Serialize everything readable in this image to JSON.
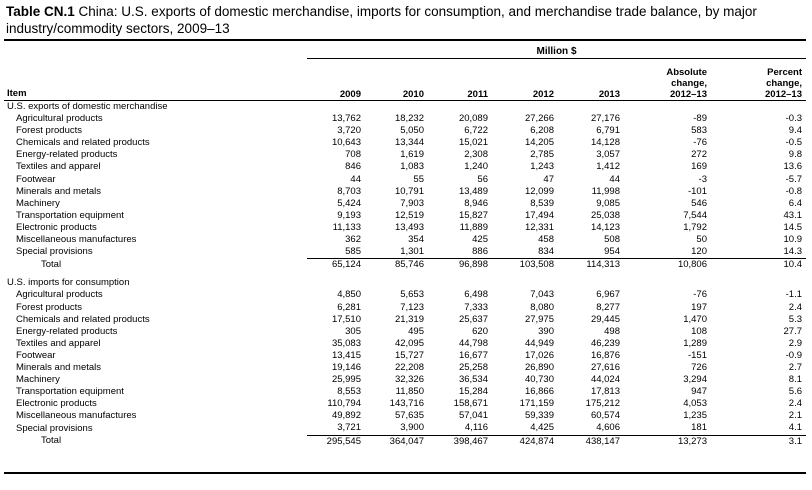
{
  "caption": {
    "label": "Table CN.1",
    "text": "China: U.S. exports of domestic merchandise, imports for consumption, and merchandise trade balance, by major industry/commodity sectors, 2009–13"
  },
  "unit_header": "Million $",
  "columns": {
    "item": "Item",
    "y2009": "2009",
    "y2010": "2010",
    "y2011": "2011",
    "y2012": "2012",
    "y2013": "2013",
    "abs": [
      "Absolute",
      "change,",
      "2012–13"
    ],
    "pct": [
      "Percent",
      "change,",
      "2012–13"
    ]
  },
  "exports": {
    "title": "U.S. exports of domestic merchandise",
    "rows": [
      [
        "Agricultural products",
        "13,762",
        "18,232",
        "20,089",
        "27,266",
        "27,176",
        "-89",
        "-0.3"
      ],
      [
        "Forest products",
        "3,720",
        "5,050",
        "6,722",
        "6,208",
        "6,791",
        "583",
        "9.4"
      ],
      [
        "Chemicals and related products",
        "10,643",
        "13,344",
        "15,021",
        "14,205",
        "14,128",
        "-76",
        "-0.5"
      ],
      [
        "Energy-related products",
        "708",
        "1,619",
        "2,308",
        "2,785",
        "3,057",
        "272",
        "9.8"
      ],
      [
        "Textiles and apparel",
        "846",
        "1,083",
        "1,240",
        "1,243",
        "1,412",
        "169",
        "13.6"
      ],
      [
        "Footwear",
        "44",
        "55",
        "56",
        "47",
        "44",
        "-3",
        "-5.7"
      ],
      [
        "Minerals and metals",
        "8,703",
        "10,791",
        "13,489",
        "12,099",
        "11,998",
        "-101",
        "-0.8"
      ],
      [
        "Machinery",
        "5,424",
        "7,903",
        "8,946",
        "8,539",
        "9,085",
        "546",
        "6.4"
      ],
      [
        "Transportation equipment",
        "9,193",
        "12,519",
        "15,827",
        "17,494",
        "25,038",
        "7,544",
        "43.1"
      ],
      [
        "Electronic products",
        "11,133",
        "13,493",
        "11,889",
        "12,331",
        "14,123",
        "1,792",
        "14.5"
      ],
      [
        "Miscellaneous manufactures",
        "362",
        "354",
        "425",
        "458",
        "508",
        "50",
        "10.9"
      ],
      [
        "Special provisions",
        "585",
        "1,301",
        "886",
        "834",
        "954",
        "120",
        "14.3"
      ]
    ],
    "total": [
      "Total",
      "65,124",
      "85,746",
      "96,898",
      "103,508",
      "114,313",
      "10,806",
      "10.4"
    ]
  },
  "imports": {
    "title": "U.S. imports for consumption",
    "rows": [
      [
        "Agricultural products",
        "4,850",
        "5,653",
        "6,498",
        "7,043",
        "6,967",
        "-76",
        "-1.1"
      ],
      [
        "Forest products",
        "6,281",
        "7,123",
        "7,333",
        "8,080",
        "8,277",
        "197",
        "2.4"
      ],
      [
        "Chemicals and related products",
        "17,510",
        "21,319",
        "25,637",
        "27,975",
        "29,445",
        "1,470",
        "5.3"
      ],
      [
        "Energy-related products",
        "305",
        "495",
        "620",
        "390",
        "498",
        "108",
        "27.7"
      ],
      [
        "Textiles and apparel",
        "35,083",
        "42,095",
        "44,798",
        "44,949",
        "46,239",
        "1,289",
        "2.9"
      ],
      [
        "Footwear",
        "13,415",
        "15,727",
        "16,677",
        "17,026",
        "16,876",
        "-151",
        "-0.9"
      ],
      [
        "Minerals and metals",
        "19,146",
        "22,208",
        "25,258",
        "26,890",
        "27,616",
        "726",
        "2.7"
      ],
      [
        "Machinery",
        "25,995",
        "32,326",
        "36,534",
        "40,730",
        "44,024",
        "3,294",
        "8.1"
      ],
      [
        "Transportation equipment",
        "8,553",
        "11,850",
        "15,284",
        "16,866",
        "17,813",
        "947",
        "5.6"
      ],
      [
        "Electronic products",
        "110,794",
        "143,716",
        "158,671",
        "171,159",
        "175,212",
        "4,053",
        "2.4"
      ],
      [
        "Miscellaneous manufactures",
        "49,892",
        "57,635",
        "57,041",
        "59,339",
        "60,574",
        "1,235",
        "2.1"
      ],
      [
        "Special provisions",
        "3,721",
        "3,900",
        "4,116",
        "4,425",
        "4,606",
        "181",
        "4.1"
      ]
    ],
    "total": [
      "Total",
      "295,545",
      "364,047",
      "398,467",
      "424,874",
      "438,147",
      "13,273",
      "3.1"
    ]
  }
}
